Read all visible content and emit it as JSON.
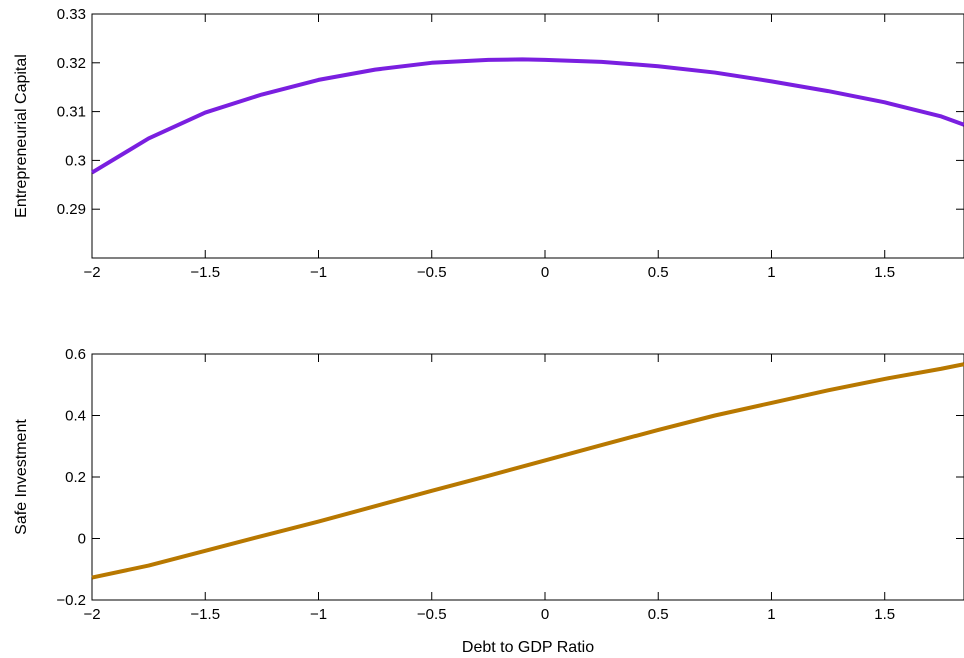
{
  "chart_data": [
    {
      "type": "line",
      "title": "",
      "xlabel": "",
      "ylabel": "Entrepreneurial Capital",
      "xlim": [
        -2,
        1.85
      ],
      "ylim": [
        0.28,
        0.33
      ],
      "xticks": [
        -2,
        -1.5,
        -1,
        -0.5,
        0,
        0.5,
        1,
        1.5
      ],
      "xtick_labels": [
        "−2",
        "−1.5",
        "−1",
        "−0.5",
        "0",
        "0.5",
        "1",
        "1.5"
      ],
      "yticks": [
        0.29,
        0.3,
        0.31,
        0.32,
        0.33
      ],
      "ytick_labels": [
        "0.29",
        "0.3",
        "0.31",
        "0.32",
        "0.33"
      ],
      "grid": false,
      "series": [
        {
          "color": "#7a1fe0",
          "x": [
            -2,
            -1.75,
            -1.5,
            -1.25,
            -1,
            -0.75,
            -0.5,
            -0.25,
            -0.1,
            0,
            0.25,
            0.5,
            0.75,
            1,
            1.25,
            1.5,
            1.75,
            1.85
          ],
          "y": [
            0.2975,
            0.3045,
            0.3098,
            0.3135,
            0.3165,
            0.3186,
            0.32,
            0.3206,
            0.3207,
            0.3206,
            0.3202,
            0.3193,
            0.318,
            0.3162,
            0.3142,
            0.3119,
            0.309,
            0.3073
          ]
        }
      ]
    },
    {
      "type": "line",
      "title": "",
      "xlabel": "Debt to GDP Ratio",
      "ylabel": "Safe Investment",
      "xlim": [
        -2,
        1.85
      ],
      "ylim": [
        -0.2,
        0.6
      ],
      "xticks": [
        -2,
        -1.5,
        -1,
        -0.5,
        0,
        0.5,
        1,
        1.5
      ],
      "xtick_labels": [
        "−2",
        "−1.5",
        "−1",
        "−0.5",
        "0",
        "0.5",
        "1",
        "1.5"
      ],
      "yticks": [
        -0.2,
        0,
        0.2,
        0.4,
        0.6
      ],
      "ytick_labels": [
        "−0.2",
        "0",
        "0.2",
        "0.4",
        "0.6"
      ],
      "grid": false,
      "series": [
        {
          "color": "#b87800",
          "x": [
            -2,
            -1.75,
            -1.5,
            -1.25,
            -1,
            -0.75,
            -0.5,
            -0.25,
            0,
            0.25,
            0.5,
            0.75,
            1,
            1.25,
            1.5,
            1.75,
            1.85
          ],
          "y": [
            -0.127,
            -0.088,
            -0.04,
            0.008,
            0.055,
            0.105,
            0.155,
            0.204,
            0.254,
            0.304,
            0.353,
            0.4,
            0.441,
            0.482,
            0.519,
            0.552,
            0.567
          ]
        }
      ]
    }
  ]
}
